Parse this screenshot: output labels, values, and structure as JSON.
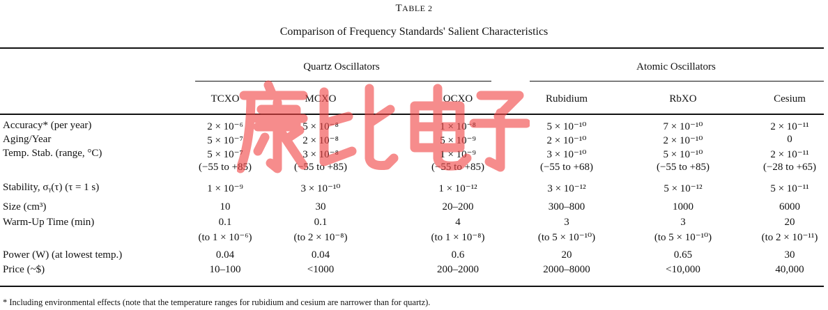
{
  "table_label": "Table 2",
  "title": "Comparison of Frequency Standards' Salient Characteristics",
  "groups": [
    "Quartz Oscillators",
    "Atomic Oscillators"
  ],
  "columns": [
    "TCXO",
    "MCXO",
    "OCXO",
    "Rubidium",
    "RbXO",
    "Cesium"
  ],
  "rows": [
    {
      "label": "Accuracy* (per year)",
      "values": [
        "2 × 10⁻⁶",
        "5 × 10⁻⁸",
        "1 × 10⁻⁸",
        "5 × 10⁻¹⁰",
        "7 × 10⁻¹⁰",
        "2 × 10⁻¹¹"
      ]
    },
    {
      "label": "Aging/Year",
      "values": [
        "5 × 10⁻⁷",
        "2 × 10⁻⁸",
        "5 × 10⁻⁹",
        "2 × 10⁻¹⁰",
        "2 × 10⁻¹⁰",
        "0"
      ]
    },
    {
      "label": "Temp. Stab. (range, °C)",
      "values": [
        "5 × 10⁻⁷",
        "3 × 10⁻⁸",
        "1 × 10⁻⁹",
        "3 × 10⁻¹⁰",
        "5 × 10⁻¹⁰",
        "2 × 10⁻¹¹"
      ],
      "sub": [
        "(−55 to +85)",
        "(−55 to +85)",
        "(−55 to +85)",
        "(−55 to +68)",
        "(−55 to +85)",
        "(−28 to +65)"
      ]
    },
    {
      "label": "Stability, σᵧ(τ) (τ = 1 s)",
      "values": [
        "1 × 10⁻⁹",
        "3 × 10⁻¹⁰",
        "1 × 10⁻¹²",
        "3 × 10⁻¹²",
        "5 × 10⁻¹²",
        "5 × 10⁻¹¹"
      ]
    },
    {
      "label": "Size (cm³)",
      "values": [
        "10",
        "30",
        "20–200",
        "300–800",
        "1000",
        "6000"
      ]
    },
    {
      "label": "Warm-Up Time (min)",
      "values": [
        "0.1",
        "0.1",
        "4",
        "3",
        "3",
        "20"
      ],
      "sub": [
        "(to 1 × 10⁻⁶)",
        "(to 2 × 10⁻⁸)",
        "(to 1 × 10⁻⁸)",
        "(to 5 × 10⁻¹⁰)",
        "(to 5 × 10⁻¹⁰)",
        "(to 2 × 10⁻¹¹)"
      ]
    },
    {
      "label": "Power (W) (at lowest temp.)",
      "values": [
        "0.04",
        "0.04",
        "0.6",
        "20",
        "0.65",
        "30"
      ]
    },
    {
      "label": "Price (~$)",
      "values": [
        "10–100",
        "<1000",
        "200–2000",
        "2000–8000",
        "<10,000",
        "40,000"
      ]
    }
  ],
  "footnote": "* Including environmental effects (note that the temperature ranges for rubidium and cesium are narrower than for quartz).",
  "watermark": "康比电子"
}
